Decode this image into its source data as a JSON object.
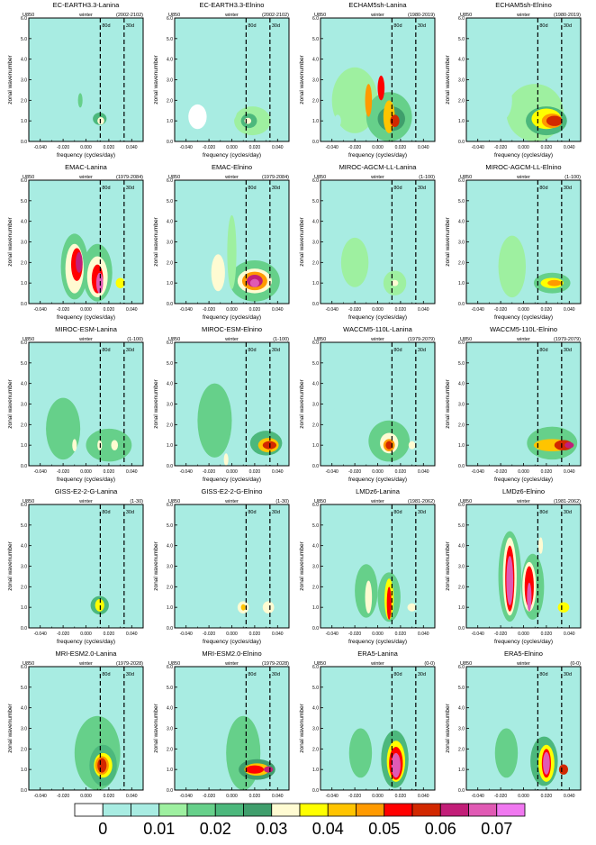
{
  "chart_data": {
    "type": "heatmap",
    "common": {
      "variable": "U850",
      "season": "winter",
      "xlabel": "frequency (cycles/day)",
      "ylabel": "zonal wavenumber",
      "xticks": [
        "-0.040",
        "-0.020",
        "0.000",
        "0.020",
        "0.040"
      ],
      "yticks": [
        "0.0",
        "1.0",
        "2.0",
        "3.0",
        "4.0",
        "5.0",
        "6.0"
      ],
      "xlim": [
        -0.05,
        0.05
      ],
      "ylim": [
        0,
        6
      ],
      "line_80d": "80d",
      "line_30d": "30d"
    },
    "colorbar": {
      "labels": [
        "0",
        "0.01",
        "0.02",
        "0.03",
        "0.04",
        "0.05",
        "0.06",
        "0.07"
      ],
      "colors": [
        "#ffffff",
        "#a8ece2",
        "#a8ece2",
        "#9ef0a0",
        "#66d08a",
        "#4cb87c",
        "#3f9e6c",
        "#fffbd2",
        "#ffff00",
        "#ffc400",
        "#ff9a00",
        "#ff0000",
        "#d22800",
        "#c21e78",
        "#e05ab4",
        "#f078f0"
      ]
    },
    "panels": [
      {
        "title": "EC-EARTH3.3-Lanina",
        "years": "(2002-2102)",
        "blobs": [
          [
            0.01,
            1.0,
            0.01,
            0.6,
            2
          ],
          [
            0.012,
            1.1,
            0.006,
            0.3,
            5
          ],
          [
            0.013,
            1.0,
            0.003,
            0.18,
            7
          ],
          [
            -0.005,
            2.0,
            0.004,
            0.8,
            2
          ],
          [
            -0.005,
            2.0,
            0.002,
            0.35,
            4
          ],
          [
            -0.02,
            1.2,
            0.006,
            0.6,
            1
          ],
          [
            0.03,
            1.0,
            0.008,
            0.4,
            2
          ]
        ]
      },
      {
        "title": "EC-EARTH3.3-Elnino",
        "years": "(2002-2102)",
        "blobs": [
          [
            0.018,
            1.0,
            0.016,
            0.7,
            3
          ],
          [
            0.015,
            1.0,
            0.007,
            0.35,
            5
          ],
          [
            0.014,
            1.0,
            0.003,
            0.15,
            7
          ],
          [
            0.0,
            2.2,
            0.006,
            1.2,
            1
          ],
          [
            -0.03,
            1.2,
            0.008,
            0.6,
            0
          ]
        ]
      },
      {
        "title": "ECHAM5sh-Lanina",
        "years": "(1980-2019)",
        "blobs": [
          [
            0.0,
            1.6,
            0.05,
            1.5,
            2
          ],
          [
            -0.02,
            2.0,
            0.02,
            1.6,
            3
          ],
          [
            0.01,
            1.2,
            0.02,
            1.2,
            4
          ],
          [
            0.012,
            1.1,
            0.012,
            0.6,
            6
          ],
          [
            0.01,
            1.2,
            0.005,
            0.8,
            9
          ],
          [
            0.015,
            1.0,
            0.004,
            0.3,
            12
          ],
          [
            -0.008,
            2.0,
            0.003,
            0.8,
            10
          ],
          [
            0.003,
            2.6,
            0.003,
            0.6,
            11
          ],
          [
            -0.035,
            1.0,
            0.003,
            0.3,
            2
          ]
        ]
      },
      {
        "title": "ECHAM5sh-Elnino",
        "years": "(1980-2019)",
        "blobs": [
          [
            0.0,
            2.0,
            0.05,
            2.0,
            1
          ],
          [
            0.01,
            1.4,
            0.025,
            1.4,
            3
          ],
          [
            0.02,
            1.0,
            0.018,
            0.7,
            5
          ],
          [
            0.02,
            1.1,
            0.013,
            0.5,
            8
          ],
          [
            0.025,
            1.0,
            0.009,
            0.35,
            10
          ],
          [
            0.027,
            1.0,
            0.007,
            0.25,
            12
          ],
          [
            -0.02,
            2.0,
            0.01,
            1.0,
            2
          ],
          [
            -0.035,
            1.0,
            0.003,
            0.3,
            2
          ]
        ]
      },
      {
        "title": "EMAC-Lanina",
        "years": "(1979-2084)",
        "blobs": [
          [
            0.0,
            2.2,
            0.05,
            2.2,
            2
          ],
          [
            -0.01,
            1.8,
            0.012,
            1.6,
            4
          ],
          [
            0.01,
            1.5,
            0.013,
            1.4,
            4
          ],
          [
            -0.01,
            1.7,
            0.008,
            1.2,
            7
          ],
          [
            0.01,
            1.3,
            0.009,
            1.0,
            7
          ],
          [
            -0.008,
            1.9,
            0.005,
            0.8,
            11
          ],
          [
            0.01,
            1.2,
            0.005,
            0.7,
            11
          ],
          [
            -0.006,
            2.0,
            0.003,
            0.5,
            13
          ],
          [
            0.012,
            1.0,
            0.003,
            0.5,
            14
          ],
          [
            0.03,
            1.0,
            0.004,
            0.25,
            8
          ]
        ]
      },
      {
        "title": "EMAC-Elnino",
        "years": "(1979-2084)",
        "blobs": [
          [
            0.0,
            2.2,
            0.05,
            2.4,
            2
          ],
          [
            0.02,
            1.1,
            0.022,
            1.0,
            4
          ],
          [
            0.02,
            1.1,
            0.015,
            0.6,
            7
          ],
          [
            0.02,
            1.1,
            0.011,
            0.45,
            10
          ],
          [
            0.02,
            1.1,
            0.007,
            0.3,
            13
          ],
          [
            0.02,
            1.0,
            0.004,
            0.2,
            14
          ],
          [
            -0.012,
            1.5,
            0.006,
            0.9,
            7
          ],
          [
            0.0,
            2.5,
            0.004,
            1.8,
            3
          ]
        ]
      },
      {
        "title": "MIROC-AGCM-LL-Lanina",
        "years": "(1-100)",
        "blobs": [
          [
            0.0,
            2.0,
            0.045,
            1.8,
            2
          ],
          [
            -0.02,
            2.0,
            0.012,
            1.2,
            3
          ],
          [
            0.015,
            1.0,
            0.01,
            0.6,
            3
          ],
          [
            0.015,
            1.0,
            0.003,
            0.15,
            7
          ]
        ]
      },
      {
        "title": "MIROC-AGCM-LL-Elnino",
        "years": "(1-100)",
        "blobs": [
          [
            0.0,
            1.5,
            0.045,
            1.5,
            1
          ],
          [
            -0.01,
            1.8,
            0.012,
            1.5,
            3
          ],
          [
            0.025,
            1.0,
            0.016,
            0.5,
            4
          ],
          [
            0.025,
            1.0,
            0.01,
            0.25,
            8
          ],
          [
            0.027,
            1.0,
            0.006,
            0.15,
            10
          ]
        ]
      },
      {
        "title": "MIROC-ESM-Lanina",
        "years": "(1-100)",
        "blobs": [
          [
            0.0,
            1.5,
            0.045,
            1.5,
            2
          ],
          [
            -0.02,
            1.8,
            0.015,
            1.5,
            4
          ],
          [
            0.02,
            1.0,
            0.02,
            0.8,
            4
          ],
          [
            -0.01,
            1.0,
            0.002,
            0.3,
            7
          ],
          [
            0.012,
            1.0,
            0.002,
            0.25,
            7
          ],
          [
            0.025,
            1.0,
            0.003,
            0.25,
            7
          ]
        ]
      },
      {
        "title": "MIROC-ESM-Elnino",
        "years": "(1-100)",
        "blobs": [
          [
            0.0,
            2.0,
            0.05,
            2.0,
            2
          ],
          [
            -0.015,
            2.2,
            0.015,
            1.8,
            4
          ],
          [
            0.03,
            1.1,
            0.014,
            0.6,
            5
          ],
          [
            0.032,
            1.0,
            0.009,
            0.35,
            9
          ],
          [
            0.033,
            1.0,
            0.006,
            0.2,
            12
          ],
          [
            -0.005,
            0.3,
            0.002,
            0.3,
            7
          ]
        ]
      },
      {
        "title": "WACCM5-110L-Lanina",
        "years": "(1979-2079)",
        "blobs": [
          [
            0.0,
            1.8,
            0.045,
            1.8,
            2
          ],
          [
            0.01,
            1.2,
            0.018,
            1.0,
            4
          ],
          [
            0.01,
            1.1,
            0.008,
            0.5,
            7
          ],
          [
            0.01,
            1.0,
            0.005,
            0.3,
            10
          ],
          [
            0.01,
            1.0,
            0.003,
            0.2,
            12
          ],
          [
            0.03,
            1.0,
            0.003,
            0.2,
            7
          ]
        ]
      },
      {
        "title": "WACCM5-110L-Elnino",
        "years": "(1979-2079)",
        "blobs": [
          [
            0.0,
            1.8,
            0.045,
            1.8,
            2
          ],
          [
            0.025,
            1.1,
            0.022,
            0.8,
            4
          ],
          [
            0.025,
            1.0,
            0.016,
            0.3,
            9
          ],
          [
            0.035,
            1.0,
            0.008,
            0.25,
            12
          ],
          [
            0.04,
            1.0,
            0.004,
            0.15,
            13
          ]
        ]
      },
      {
        "title": "GISS-E2-2-G-Lanina",
        "years": "(1-30)",
        "blobs": [
          [
            -0.03,
            2.2,
            0.01,
            1.0,
            2
          ],
          [
            0.0,
            1.2,
            0.04,
            0.8,
            2
          ],
          [
            0.012,
            1.1,
            0.008,
            0.45,
            5
          ],
          [
            0.012,
            1.1,
            0.004,
            0.3,
            8
          ]
        ]
      },
      {
        "title": "GISS-E2-2-G-Elnino",
        "years": "(1-30)",
        "blobs": [
          [
            0.02,
            1.0,
            0.03,
            0.6,
            2
          ],
          [
            0.01,
            1.0,
            0.005,
            0.3,
            7
          ],
          [
            0.032,
            1.0,
            0.005,
            0.3,
            7
          ],
          [
            0.01,
            1.0,
            0.002,
            0.15,
            9
          ]
        ]
      },
      {
        "title": "LMDz6-Lanina",
        "years": "(1981-2062)",
        "blobs": [
          [
            0.0,
            1.8,
            0.045,
            1.8,
            2
          ],
          [
            -0.01,
            1.8,
            0.01,
            1.3,
            4
          ],
          [
            0.01,
            1.5,
            0.01,
            1.2,
            4
          ],
          [
            -0.008,
            1.5,
            0.003,
            0.8,
            7
          ],
          [
            0.01,
            1.4,
            0.004,
            1.0,
            8
          ],
          [
            0.01,
            1.2,
            0.002,
            0.8,
            11
          ],
          [
            0.03,
            1.0,
            0.004,
            0.2,
            7
          ]
        ]
      },
      {
        "title": "LMDz6-Elnino",
        "years": "(1981-2062)",
        "blobs": [
          [
            0.0,
            2.5,
            0.05,
            2.5,
            2
          ],
          [
            -0.012,
            2.5,
            0.01,
            2.2,
            4
          ],
          [
            0.008,
            2.0,
            0.01,
            1.6,
            4
          ],
          [
            -0.012,
            2.5,
            0.006,
            1.9,
            7
          ],
          [
            0.005,
            2.0,
            0.006,
            1.2,
            7
          ],
          [
            -0.012,
            2.4,
            0.004,
            1.6,
            11
          ],
          [
            0.005,
            2.0,
            0.004,
            1.0,
            11
          ],
          [
            -0.012,
            2.3,
            0.003,
            1.2,
            14
          ],
          [
            0.005,
            1.5,
            0.002,
            0.7,
            14
          ],
          [
            0.035,
            1.0,
            0.005,
            0.25,
            8
          ],
          [
            0.015,
            4.0,
            0.002,
            0.4,
            7
          ]
        ]
      },
      {
        "title": "MRI-ESM2.0-Lanina",
        "years": "(1979-2028)",
        "blobs": [
          [
            0.0,
            2.2,
            0.05,
            2.4,
            2
          ],
          [
            0.01,
            1.8,
            0.02,
            1.8,
            4
          ],
          [
            0.015,
            1.2,
            0.012,
            1.0,
            5
          ],
          [
            0.015,
            1.2,
            0.008,
            0.6,
            8
          ],
          [
            0.014,
            1.2,
            0.006,
            0.45,
            10
          ],
          [
            0.014,
            1.2,
            0.004,
            0.35,
            12
          ]
        ]
      },
      {
        "title": "MRI-ESM2.0-Elnino",
        "years": "(1979-2028)",
        "blobs": [
          [
            0.0,
            2.2,
            0.05,
            2.4,
            2
          ],
          [
            0.01,
            1.8,
            0.015,
            1.8,
            4
          ],
          [
            0.022,
            1.0,
            0.016,
            0.5,
            6
          ],
          [
            0.022,
            1.0,
            0.011,
            0.3,
            9
          ],
          [
            0.02,
            1.0,
            0.008,
            0.2,
            11
          ],
          [
            0.032,
            1.0,
            0.004,
            0.15,
            13
          ]
        ]
      },
      {
        "title": "ERA5-Lanina",
        "years": "(0-0)",
        "blobs": [
          [
            0.0,
            2.0,
            0.05,
            2.2,
            2
          ],
          [
            -0.015,
            1.8,
            0.01,
            1.2,
            4
          ],
          [
            0.015,
            1.5,
            0.012,
            1.4,
            5
          ],
          [
            0.016,
            1.4,
            0.008,
            1.0,
            8
          ],
          [
            0.016,
            1.3,
            0.006,
            0.8,
            11
          ],
          [
            0.016,
            1.2,
            0.004,
            0.6,
            14
          ]
        ]
      },
      {
        "title": "ERA5-Elnino",
        "years": "(0-0)",
        "blobs": [
          [
            0.0,
            2.0,
            0.05,
            2.2,
            2
          ],
          [
            -0.015,
            1.8,
            0.01,
            1.2,
            4
          ],
          [
            0.018,
            1.4,
            0.012,
            1.2,
            5
          ],
          [
            0.02,
            1.3,
            0.007,
            0.9,
            8
          ],
          [
            0.02,
            1.3,
            0.004,
            0.7,
            11
          ],
          [
            0.02,
            1.3,
            0.003,
            0.55,
            14
          ],
          [
            0.035,
            1.0,
            0.004,
            0.25,
            12
          ]
        ]
      }
    ]
  }
}
